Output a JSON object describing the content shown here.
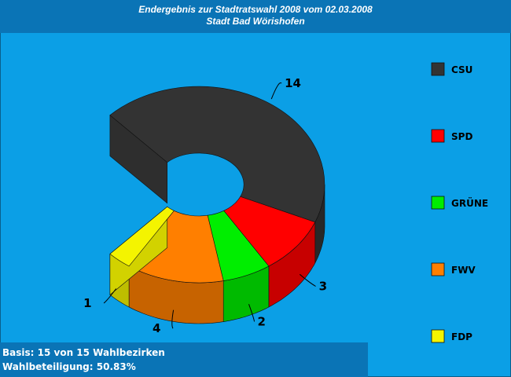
{
  "header": {
    "title": "Endergebnis zur Stadtratswahl 2008 vom 02.03.2008",
    "subtitle": "Stadt Bad Wörishofen"
  },
  "footer": {
    "basis": "Basis: 15 von 15 Wahlbezirken",
    "turnout": "Wahlbeteiligung: 50.83%"
  },
  "chart_data": {
    "type": "pie",
    "title": "Endergebnis zur Stadtratswahl 2008 vom 02.03.2008",
    "subtitle": "Stadt Bad Wörishofen",
    "style": "3d-donut",
    "legend_position": "right",
    "categories": [
      "CSU",
      "SPD",
      "GRÜNE",
      "FWV",
      "FDP"
    ],
    "values": [
      14,
      3,
      2,
      4,
      1
    ],
    "colors": [
      "#333333",
      "#ff0000",
      "#00ee00",
      "#ff7f00",
      "#f4f400"
    ],
    "data_labels": [
      "14",
      "3",
      "2",
      "4",
      "1"
    ]
  }
}
